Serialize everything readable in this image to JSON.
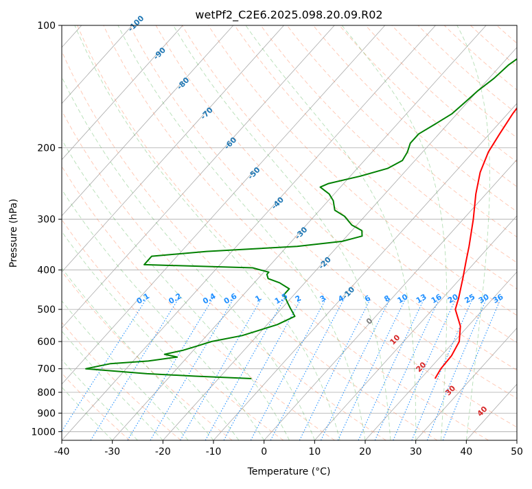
{
  "chart_data": {
    "type": "skew-t",
    "title": "wetPf2_C2E6.2025.098.20.09.R02",
    "xlabel": "Temperature (°C)",
    "ylabel": "Pressure (hPa)",
    "xlim": [
      -40,
      50
    ],
    "ylim": [
      1050,
      100
    ],
    "x_ticks": [
      "-40",
      "-30",
      "-20",
      "-10",
      "0",
      "10",
      "20",
      "30",
      "40",
      "50"
    ],
    "y_ticks": [
      "100",
      "200",
      "300",
      "400",
      "500",
      "600",
      "700",
      "800",
      "900",
      "1000"
    ],
    "y_log": true,
    "grid": true,
    "colors": {
      "temperature": "#ff0000",
      "dewpoint": "#008000",
      "mixing_ratio": "#1f8fff",
      "dry_adiabat": "#ff7f50",
      "moist_adiabat": "#2ca02c",
      "frame": "#000000",
      "grid": "#aaaaaa"
    },
    "temperature_profile": [
      {
        "p": 740,
        "t": 22.8
      },
      {
        "p": 700,
        "t": 22.2
      },
      {
        "p": 650,
        "t": 22.0
      },
      {
        "p": 600,
        "t": 21.0
      },
      {
        "p": 550,
        "t": 18.5
      },
      {
        "p": 500,
        "t": 14.5
      },
      {
        "p": 470,
        "t": 13.2
      },
      {
        "p": 420,
        "t": 10.5
      },
      {
        "p": 380,
        "t": 8.0
      },
      {
        "p": 350,
        "t": 6.0
      },
      {
        "p": 300,
        "t": 2.0
      },
      {
        "p": 260,
        "t": -2.0
      },
      {
        "p": 230,
        "t": -5.0
      },
      {
        "p": 205,
        "t": -7.0
      },
      {
        "p": 185,
        "t": -8.0
      },
      {
        "p": 165,
        "t": -9.0
      },
      {
        "p": 150,
        "t": -9.5
      },
      {
        "p": 140,
        "t": -8.5
      },
      {
        "p": 130,
        "t": -7.0
      },
      {
        "p": 120,
        "t": -5.5
      },
      {
        "p": 112,
        "t": -4.5
      },
      {
        "p": 104,
        "t": -4.2
      },
      {
        "p": 100,
        "t": -4.5
      }
    ],
    "dewpoint_profile": [
      {
        "p": 740,
        "t": -13.5
      },
      {
        "p": 730,
        "t": -25.0
      },
      {
        "p": 720,
        "t": -35.0
      },
      {
        "p": 700,
        "t": -48.0
      },
      {
        "p": 680,
        "t": -44.0
      },
      {
        "p": 670,
        "t": -37.0
      },
      {
        "p": 655,
        "t": -32.0
      },
      {
        "p": 645,
        "t": -35.0
      },
      {
        "p": 630,
        "t": -32.0
      },
      {
        "p": 615,
        "t": -30.0
      },
      {
        "p": 600,
        "t": -28.0
      },
      {
        "p": 580,
        "t": -23.0
      },
      {
        "p": 545,
        "t": -18.0
      },
      {
        "p": 520,
        "t": -16.0
      },
      {
        "p": 495,
        "t": -18.5
      },
      {
        "p": 480,
        "t": -20.0
      },
      {
        "p": 460,
        "t": -22.0
      },
      {
        "p": 445,
        "t": -22.0
      },
      {
        "p": 430,
        "t": -25.0
      },
      {
        "p": 420,
        "t": -28.0
      },
      {
        "p": 410,
        "t": -29.0
      },
      {
        "p": 405,
        "t": -29.0
      },
      {
        "p": 395,
        "t": -33.0
      },
      {
        "p": 388,
        "t": -55.0
      },
      {
        "p": 370,
        "t": -55.0
      },
      {
        "p": 360,
        "t": -45.0
      },
      {
        "p": 350,
        "t": -28.0
      },
      {
        "p": 340,
        "t": -20.0
      },
      {
        "p": 330,
        "t": -17.0
      },
      {
        "p": 320,
        "t": -18.0
      },
      {
        "p": 310,
        "t": -21.0
      },
      {
        "p": 295,
        "t": -24.0
      },
      {
        "p": 285,
        "t": -27.0
      },
      {
        "p": 270,
        "t": -29.0
      },
      {
        "p": 260,
        "t": -31.0
      },
      {
        "p": 250,
        "t": -34.0
      },
      {
        "p": 245,
        "t": -33.0
      },
      {
        "p": 235,
        "t": -28.0
      },
      {
        "p": 225,
        "t": -24.0
      },
      {
        "p": 215,
        "t": -22.5
      },
      {
        "p": 205,
        "t": -23.0
      },
      {
        "p": 195,
        "t": -24.0
      },
      {
        "p": 185,
        "t": -24.0
      },
      {
        "p": 175,
        "t": -22.5
      },
      {
        "p": 165,
        "t": -21.0
      },
      {
        "p": 155,
        "t": -20.5
      },
      {
        "p": 145,
        "t": -20.0
      },
      {
        "p": 135,
        "t": -19.0
      },
      {
        "p": 125,
        "t": -18.5
      },
      {
        "p": 118,
        "t": -17.5
      },
      {
        "p": 110,
        "t": -16.0
      },
      {
        "p": 103,
        "t": -15.0
      },
      {
        "p": 100,
        "t": -15.0
      }
    ],
    "mixing_ratio_labels": [
      "0.1",
      "0.2",
      "0.4",
      "0.6",
      "1",
      "1.5",
      "2",
      "3",
      "4",
      "6",
      "8",
      "10",
      "13",
      "16",
      "20",
      "25",
      "30",
      "36"
    ],
    "mixing_ratio_values": [
      0.1,
      0.2,
      0.4,
      0.6,
      1,
      1.5,
      2,
      3,
      4,
      6,
      8,
      10,
      13,
      16,
      20,
      25,
      30,
      36
    ],
    "mixing_ratio_label_pressure": 480,
    "saturation_adiabat_labels": [
      "-100",
      "-90",
      "-80",
      "-70",
      "-60",
      "-50",
      "-40",
      "-30",
      "-20",
      "-10"
    ],
    "saturation_adiabat_label_temps": [
      -100,
      -90,
      -80,
      -70,
      -60,
      -50,
      -40,
      -30,
      -20,
      -10
    ],
    "dry_adiabat_labels": [
      "10",
      "20",
      "30",
      "40"
    ],
    "dry_adiabat_label_temps": [
      10,
      20,
      30,
      40
    ],
    "zero_label": "0",
    "zero_label_temp": 0
  }
}
